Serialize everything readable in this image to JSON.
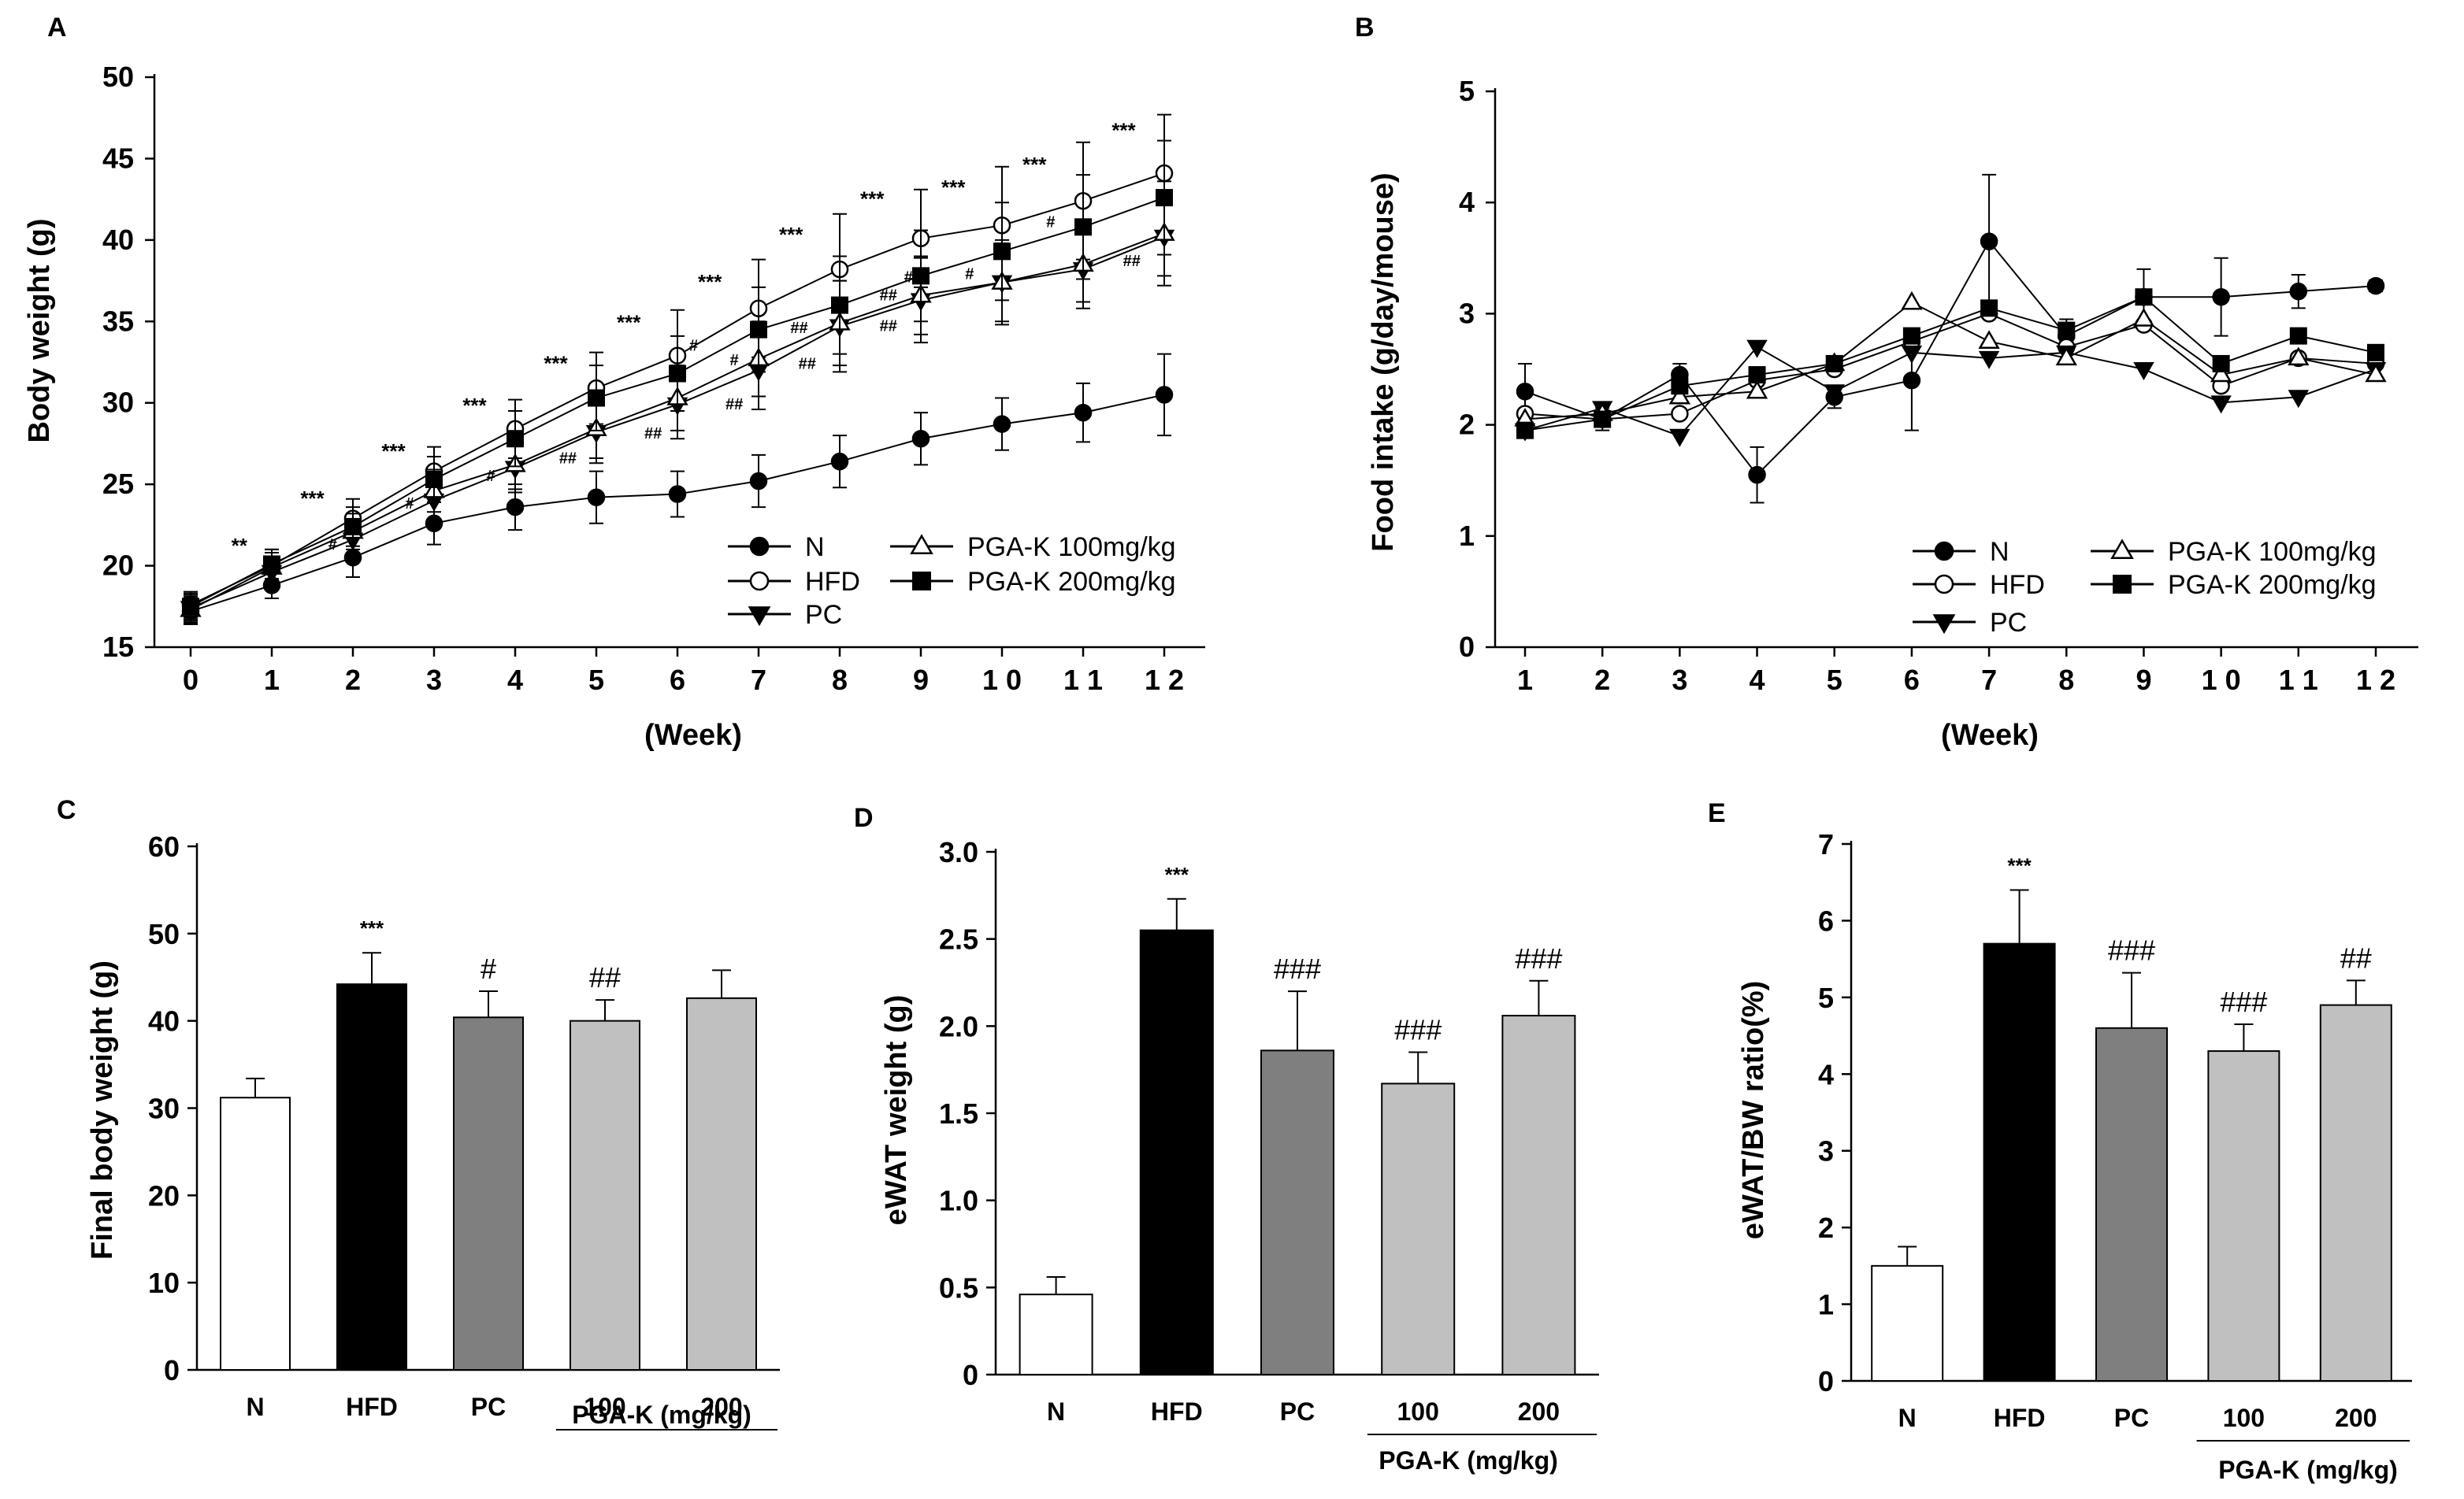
{
  "figure": {
    "panels": [
      "A",
      "B",
      "C",
      "D",
      "E"
    ],
    "series_names": [
      "N",
      "HFD",
      "PC",
      "PGA-K 100mg/kg",
      "PGA-K 200mg/kg"
    ],
    "colors": {
      "N_bar": "#ffffff",
      "HFD_bar": "#000000",
      "PC_bar": "#7f7f7f",
      "PGAK_bar": "#c0c0c0",
      "line": "#000000"
    }
  },
  "chart_data": [
    {
      "panel": "A",
      "type": "line",
      "ylabel": "Body weight (g)",
      "xlabel": "(Week)",
      "x": [
        0,
        1,
        2,
        3,
        4,
        5,
        6,
        7,
        8,
        9,
        10,
        11,
        12
      ],
      "x_tick_labels": [
        "0",
        "1",
        "2",
        "3",
        "4",
        "5",
        "6",
        "7",
        "8",
        "9",
        "1 0",
        "1 1",
        "1 2"
      ],
      "ylim": [
        15,
        50
      ],
      "y_ticks": [
        15,
        20,
        25,
        30,
        35,
        40,
        45,
        50
      ],
      "series": [
        {
          "name": "N",
          "marker": "circle-filled",
          "values": [
            17.2,
            18.8,
            20.5,
            22.6,
            23.6,
            24.2,
            24.4,
            25.2,
            26.4,
            27.8,
            28.7,
            29.4,
            30.5
          ],
          "errors": [
            0.8,
            0.8,
            1.2,
            1.3,
            1.4,
            1.6,
            1.4,
            1.6,
            1.6,
            1.6,
            1.6,
            1.8,
            2.5
          ]
        },
        {
          "name": "HFD",
          "marker": "circle-open",
          "values": [
            17.6,
            20.0,
            22.9,
            25.8,
            28.4,
            30.9,
            32.9,
            35.8,
            38.2,
            40.1,
            40.9,
            42.4,
            44.1
          ],
          "errors": [
            0.8,
            1.0,
            1.2,
            1.5,
            1.8,
            2.2,
            2.8,
            3.0,
            3.4,
            3.0,
            3.6,
            3.6,
            3.6
          ]
        },
        {
          "name": "PC",
          "marker": "triangle-down-filled",
          "values": [
            17.4,
            19.6,
            21.6,
            24.0,
            26.0,
            28.2,
            29.9,
            32.0,
            34.7,
            36.3,
            37.4,
            38.2,
            40.2
          ],
          "errors": [
            0.8,
            0.9,
            1.1,
            1.3,
            1.5,
            1.9,
            2.1,
            2.4,
            2.8,
            2.6,
            2.6,
            2.4,
            2.4
          ]
        },
        {
          "name": "PGA-K 100mg/kg",
          "marker": "triangle-up-open",
          "values": [
            17.3,
            19.9,
            22.1,
            24.6,
            26.2,
            28.4,
            30.3,
            32.7,
            34.9,
            36.6,
            37.4,
            38.5,
            40.4
          ],
          "errors": [
            0.8,
            0.9,
            1.1,
            1.3,
            1.5,
            1.8,
            2.0,
            2.3,
            2.6,
            2.4,
            2.4,
            2.3,
            3.2
          ]
        },
        {
          "name": "PGA-K 200mg/kg",
          "marker": "square-filled",
          "values": [
            17.5,
            20.1,
            22.4,
            25.3,
            27.8,
            30.3,
            31.8,
            34.5,
            36.0,
            37.8,
            39.3,
            40.8,
            42.6
          ],
          "errors": [
            0.8,
            0.9,
            1.2,
            1.4,
            1.7,
            2.0,
            2.3,
            2.6,
            3.0,
            2.8,
            3.0,
            3.2,
            3.5
          ]
        }
      ],
      "annotations": {
        "stars": [
          {
            "x": 0.6,
            "y": 20.8,
            "text": "**"
          },
          {
            "x": 1.5,
            "y": 23.7,
            "text": "***"
          },
          {
            "x": 2.5,
            "y": 26.6,
            "text": "***"
          },
          {
            "x": 3.5,
            "y": 29.4,
            "text": "***"
          },
          {
            "x": 4.5,
            "y": 32.0,
            "text": "***"
          },
          {
            "x": 5.4,
            "y": 34.5,
            "text": "***"
          },
          {
            "x": 6.4,
            "y": 37.0,
            "text": "***"
          },
          {
            "x": 7.4,
            "y": 39.9,
            "text": "***"
          },
          {
            "x": 8.4,
            "y": 42.1,
            "text": "***"
          },
          {
            "x": 9.4,
            "y": 42.8,
            "text": "***"
          },
          {
            "x": 10.4,
            "y": 44.2,
            "text": "***"
          },
          {
            "x": 11.5,
            "y": 46.3,
            "text": "***"
          }
        ],
        "hashes": [
          {
            "x": 1.75,
            "y": 21.0,
            "text": "#"
          },
          {
            "x": 2.7,
            "y": 23.5,
            "text": "#"
          },
          {
            "x": 3.7,
            "y": 25.2,
            "text": "#"
          },
          {
            "x": 4.65,
            "y": 26.3,
            "text": "##"
          },
          {
            "x": 5.7,
            "y": 27.8,
            "text": "##"
          },
          {
            "x": 6.7,
            "y": 29.6,
            "text": "##"
          },
          {
            "x": 7.6,
            "y": 32.1,
            "text": "##"
          },
          {
            "x": 8.6,
            "y": 34.4,
            "text": "##"
          },
          {
            "x": 6.2,
            "y": 33.2,
            "text": "#"
          },
          {
            "x": 6.7,
            "y": 32.3,
            "text": "#"
          },
          {
            "x": 8.6,
            "y": 36.3,
            "text": "##"
          },
          {
            "x": 9.6,
            "y": 37.6,
            "text": "#"
          },
          {
            "x": 10.6,
            "y": 40.8,
            "text": "#"
          },
          {
            "x": 11.6,
            "y": 38.4,
            "text": "##"
          },
          {
            "x": 7.5,
            "y": 34.3,
            "text": "##"
          },
          {
            "x": 8.9,
            "y": 37.4,
            "text": "##"
          }
        ]
      },
      "legend_position": "bottom-right"
    },
    {
      "panel": "B",
      "type": "line",
      "ylabel": "Food intake (g/day/mouse)",
      "xlabel": "(Week)",
      "x": [
        1,
        2,
        3,
        4,
        5,
        6,
        7,
        8,
        9,
        10,
        11,
        12
      ],
      "x_tick_labels": [
        "1",
        "2",
        "3",
        "4",
        "5",
        "6",
        "7",
        "8",
        "9",
        "1 0",
        "1 1",
        "1 2"
      ],
      "ylim": [
        0,
        5
      ],
      "y_ticks": [
        0,
        1,
        2,
        3,
        4,
        5
      ],
      "series": [
        {
          "name": "N",
          "marker": "circle-filled",
          "values": [
            2.3,
            2.05,
            2.45,
            1.55,
            2.25,
            2.4,
            3.65,
            2.8,
            3.15,
            3.15,
            3.2,
            3.25
          ],
          "errors": [
            0.25,
            0.1,
            0.1,
            0.25,
            0.1,
            0.45,
            0.6,
            0.15,
            0.25,
            0.35,
            0.15,
            0.05
          ]
        },
        {
          "name": "HFD",
          "marker": "circle-open",
          "values": [
            2.1,
            2.05,
            2.1,
            2.4,
            2.5,
            2.75,
            3.0,
            2.7,
            2.9,
            2.35,
            2.6,
            2.55
          ]
        },
        {
          "name": "PC",
          "marker": "triangle-down-filled",
          "values": [
            1.95,
            2.15,
            1.9,
            2.7,
            2.3,
            2.65,
            2.6,
            2.65,
            2.5,
            2.2,
            2.25,
            2.5
          ]
        },
        {
          "name": "PGA-K 100mg/kg",
          "marker": "triangle-up-open",
          "values": [
            2.05,
            2.1,
            2.25,
            2.3,
            2.55,
            3.1,
            2.75,
            2.6,
            2.95,
            2.45,
            2.6,
            2.45
          ]
        },
        {
          "name": "PGA-K 200mg/kg",
          "marker": "square-filled",
          "values": [
            1.95,
            2.05,
            2.35,
            2.45,
            2.55,
            2.8,
            3.05,
            2.85,
            3.15,
            2.55,
            2.8,
            2.65
          ]
        }
      ],
      "legend_position": "bottom-right"
    },
    {
      "panel": "C",
      "type": "bar",
      "ylabel": "Final body weight (g)",
      "categories": [
        "N",
        "HFD",
        "PC",
        "100",
        "200"
      ],
      "group_label": "PGA-K (mg/kg)",
      "values": [
        31.2,
        44.2,
        40.4,
        40.0,
        42.6
      ],
      "errors": [
        2.2,
        3.6,
        3.0,
        2.4,
        3.2
      ],
      "significance": [
        "",
        "***",
        "#",
        "##",
        ""
      ],
      "ylim": [
        0,
        60
      ],
      "y_ticks": [
        0,
        10,
        20,
        30,
        40,
        50,
        60
      ]
    },
    {
      "panel": "D",
      "type": "bar",
      "ylabel": "eWAT weight (g)",
      "categories": [
        "N",
        "HFD",
        "PC",
        "100",
        "200"
      ],
      "group_label": "PGA-K (mg/kg)",
      "values": [
        0.46,
        2.55,
        1.86,
        1.67,
        2.06
      ],
      "errors": [
        0.1,
        0.18,
        0.34,
        0.18,
        0.2
      ],
      "significance": [
        "",
        "***",
        "###",
        "###",
        "###"
      ],
      "ylim": [
        0,
        3.0
      ],
      "y_ticks": [
        "0",
        "0.5",
        "1.0",
        "1.5",
        "2.0",
        "2.5",
        "3.0"
      ]
    },
    {
      "panel": "E",
      "type": "bar",
      "ylabel": "eWAT/BW ratio(%)",
      "categories": [
        "N",
        "HFD",
        "PC",
        "100",
        "200"
      ],
      "group_label": "PGA-K (mg/kg)",
      "values": [
        1.5,
        5.7,
        4.6,
        4.3,
        4.9
      ],
      "errors": [
        0.25,
        0.7,
        0.72,
        0.35,
        0.32
      ],
      "significance": [
        "",
        "***",
        "###",
        "###",
        "##"
      ],
      "ylim": [
        0,
        7
      ],
      "y_ticks": [
        0,
        1,
        2,
        3,
        4,
        5,
        6,
        7
      ]
    }
  ]
}
